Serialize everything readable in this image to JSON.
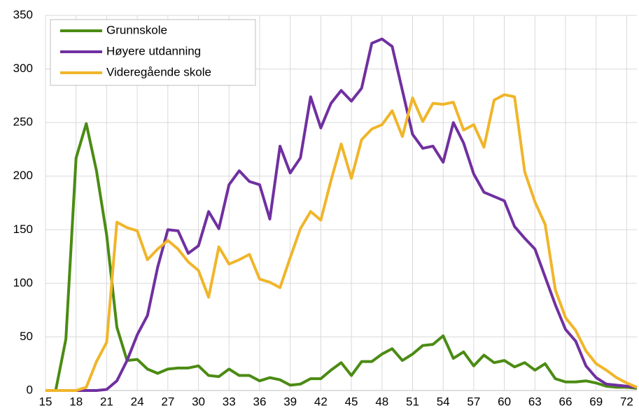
{
  "chart_data": {
    "type": "line",
    "x": [
      15,
      16,
      17,
      18,
      19,
      20,
      21,
      22,
      23,
      24,
      25,
      26,
      27,
      28,
      29,
      30,
      31,
      32,
      33,
      34,
      35,
      36,
      37,
      38,
      39,
      40,
      41,
      42,
      43,
      44,
      45,
      46,
      47,
      48,
      49,
      50,
      51,
      52,
      53,
      54,
      55,
      56,
      57,
      58,
      59,
      60,
      61,
      62,
      63,
      64,
      65,
      66,
      67,
      68,
      69,
      70,
      71,
      72,
      73
    ],
    "series": [
      {
        "name": "Grunnskole",
        "color": "#4b8b13",
        "values": [
          0,
          0,
          48,
          217,
          249,
          205,
          145,
          59,
          28,
          29,
          20,
          16,
          20,
          21,
          21,
          23,
          14,
          13,
          20,
          14,
          14,
          9,
          12,
          10,
          5,
          6,
          11,
          11,
          19,
          26,
          14,
          27,
          27,
          34,
          39,
          28,
          34,
          42,
          43,
          51,
          30,
          36,
          23,
          33,
          26,
          28,
          22,
          26,
          19,
          25,
          11,
          8,
          8,
          9,
          7,
          4,
          3,
          3,
          2
        ]
      },
      {
        "name": "Høyere utdanning",
        "color": "#7030a0",
        "values": [
          0,
          0,
          0,
          0,
          0,
          0,
          1,
          9,
          28,
          52,
          70,
          115,
          150,
          149,
          128,
          135,
          167,
          151,
          192,
          205,
          195,
          192,
          160,
          228,
          203,
          217,
          274,
          245,
          268,
          280,
          270,
          282,
          324,
          328,
          321,
          280,
          239,
          226,
          228,
          213,
          250,
          231,
          202,
          185,
          181,
          177,
          153,
          142,
          132,
          106,
          80,
          57,
          46,
          23,
          12,
          6,
          5,
          4,
          3
        ]
      },
      {
        "name": "Videregående skole",
        "color": "#f0b52a",
        "values": [
          0,
          0,
          0,
          0,
          3,
          27,
          45,
          157,
          152,
          149,
          122,
          132,
          140,
          132,
          120,
          112,
          87,
          134,
          118,
          122,
          127,
          104,
          101,
          96,
          124,
          151,
          167,
          159,
          196,
          230,
          198,
          234,
          244,
          248,
          261,
          237,
          273,
          251,
          268,
          267,
          269,
          243,
          248,
          227,
          271,
          276,
          274,
          204,
          176,
          155,
          94,
          68,
          56,
          37,
          25,
          19,
          12,
          7,
          3
        ]
      }
    ],
    "xlim": [
      15,
      73
    ],
    "xticks": [
      15,
      18,
      21,
      24,
      27,
      30,
      33,
      36,
      39,
      42,
      45,
      48,
      51,
      54,
      57,
      60,
      63,
      66,
      69,
      72
    ],
    "ylim": [
      0,
      350
    ],
    "yticks": [
      0,
      50,
      100,
      150,
      200,
      250,
      300,
      350
    ],
    "grid": true,
    "legend": "top-left"
  }
}
